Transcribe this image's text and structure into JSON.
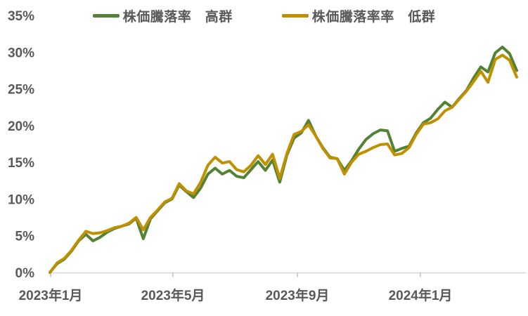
{
  "colors": {
    "background": "#FFFFFF",
    "axis_text": "#595959",
    "axis_line": "#D9D9D9",
    "tick_mark": "#BFBFBF",
    "series_high": "#548235",
    "series_low": "#BF9000"
  },
  "chart_data": {
    "type": "line",
    "title": "",
    "legend_position": "top",
    "grid": false,
    "y_axis": {
      "unit": "%",
      "min": 0,
      "max": 35,
      "tick_values": [
        0,
        5,
        10,
        15,
        20,
        25,
        30,
        35
      ],
      "tick_labels": [
        "0%",
        "5%",
        "10%",
        "15%",
        "20%",
        "25%",
        "30%",
        "35%"
      ]
    },
    "x_axis": {
      "tick_labels": [
        "2023年1月",
        "2023年5月",
        "2023年9月",
        "2024年1月"
      ]
    },
    "series": [
      {
        "name": "株価騰落率　高群",
        "color": "#548235",
        "values": [
          0.0,
          1.2,
          1.8,
          2.9,
          4.3,
          5.2,
          4.3,
          4.8,
          5.5,
          6.0,
          6.3,
          6.6,
          7.4,
          4.6,
          7.3,
          8.4,
          9.5,
          10.0,
          11.9,
          11.0,
          10.2,
          11.5,
          13.4,
          14.2,
          13.4,
          13.9,
          13.1,
          12.9,
          14.0,
          15.1,
          13.9,
          15.3,
          12.3,
          16.0,
          18.3,
          19.0,
          20.7,
          18.6,
          17.0,
          15.7,
          15.5,
          13.9,
          15.2,
          16.8,
          18.1,
          18.9,
          19.4,
          19.3,
          16.5,
          16.9,
          17.2,
          19.0,
          20.4,
          21.0,
          22.2,
          23.2,
          22.5,
          23.7,
          24.8,
          26.5,
          28.0,
          27.3,
          29.9,
          30.7,
          29.8,
          27.5
        ]
      },
      {
        "name": "株価騰落率率　低群",
        "color": "#BF9000",
        "values": [
          0.0,
          1.3,
          1.9,
          3.0,
          4.4,
          5.6,
          5.3,
          5.4,
          5.7,
          6.1,
          6.3,
          6.7,
          7.5,
          5.8,
          7.5,
          8.5,
          9.6,
          10.1,
          12.1,
          11.1,
          10.7,
          12.3,
          14.6,
          15.7,
          14.9,
          15.1,
          14.0,
          13.7,
          14.6,
          15.9,
          14.7,
          16.1,
          12.8,
          16.2,
          18.8,
          19.2,
          20.1,
          18.6,
          16.9,
          15.6,
          15.5,
          13.4,
          15.0,
          16.1,
          16.5,
          17.0,
          17.4,
          17.5,
          16.0,
          16.2,
          17.0,
          18.8,
          20.2,
          20.4,
          20.9,
          22.0,
          22.5,
          23.6,
          24.7,
          26.0,
          27.4,
          25.9,
          29.0,
          29.6,
          28.9,
          26.6
        ]
      }
    ]
  }
}
